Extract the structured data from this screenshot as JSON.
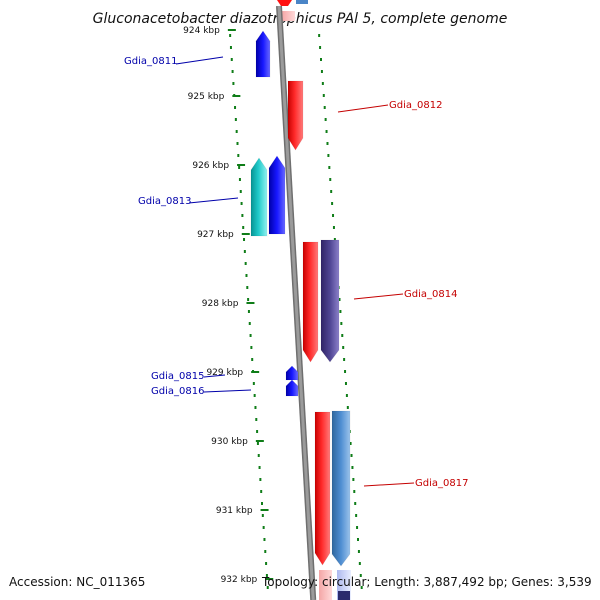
{
  "title": "Gluconacetobacter diazotrophicus PAl 5, complete genome",
  "footer": {
    "accession": "Accession: NC_011365",
    "summary": "Topology: circular; Length: 3,887,492 bp; Genes: 3,539"
  },
  "colors": {
    "background": "#ffffff",
    "backbone": "#8c8c8c",
    "tick": "#0f7d18",
    "label_forward": "#c40000",
    "label_reverse": "#0000aa",
    "gene_red": "#ff1010",
    "gene_blue": "#1010ff",
    "gene_cyan": "#11c3c3",
    "gene_purple": "#4f4593",
    "gene_steel": "#4a85c7"
  },
  "ticks": [
    {
      "label": "924 kbp"
    },
    {
      "label": "925 kbp"
    },
    {
      "label": "926 kbp"
    },
    {
      "label": "927 kbp"
    },
    {
      "label": "928 kbp"
    },
    {
      "label": "929 kbp"
    },
    {
      "label": "930 kbp"
    },
    {
      "label": "931 kbp"
    },
    {
      "label": "932 kbp"
    }
  ],
  "genes": [
    {
      "label": "Gdia_0811",
      "strand": "-",
      "color_key": "gene_blue"
    },
    {
      "label": "Gdia_0812",
      "strand": "+",
      "color_key": "gene_red"
    },
    {
      "label": "Gdia_0813",
      "strand": "-",
      "color_key": "gene_blue"
    },
    {
      "label": "Gdia_0814",
      "strand": "+",
      "color_key": "gene_red"
    },
    {
      "label": "Gdia_0815",
      "strand": "-",
      "color_key": "gene_blue"
    },
    {
      "label": "Gdia_0816",
      "strand": "-",
      "color_key": "gene_blue"
    },
    {
      "label": "Gdia_0817",
      "strand": "+",
      "color_key": "gene_red"
    }
  ],
  "icons": {
    "backbone": "genome-backbone-icon",
    "gene": "gene-arrow-icon"
  }
}
